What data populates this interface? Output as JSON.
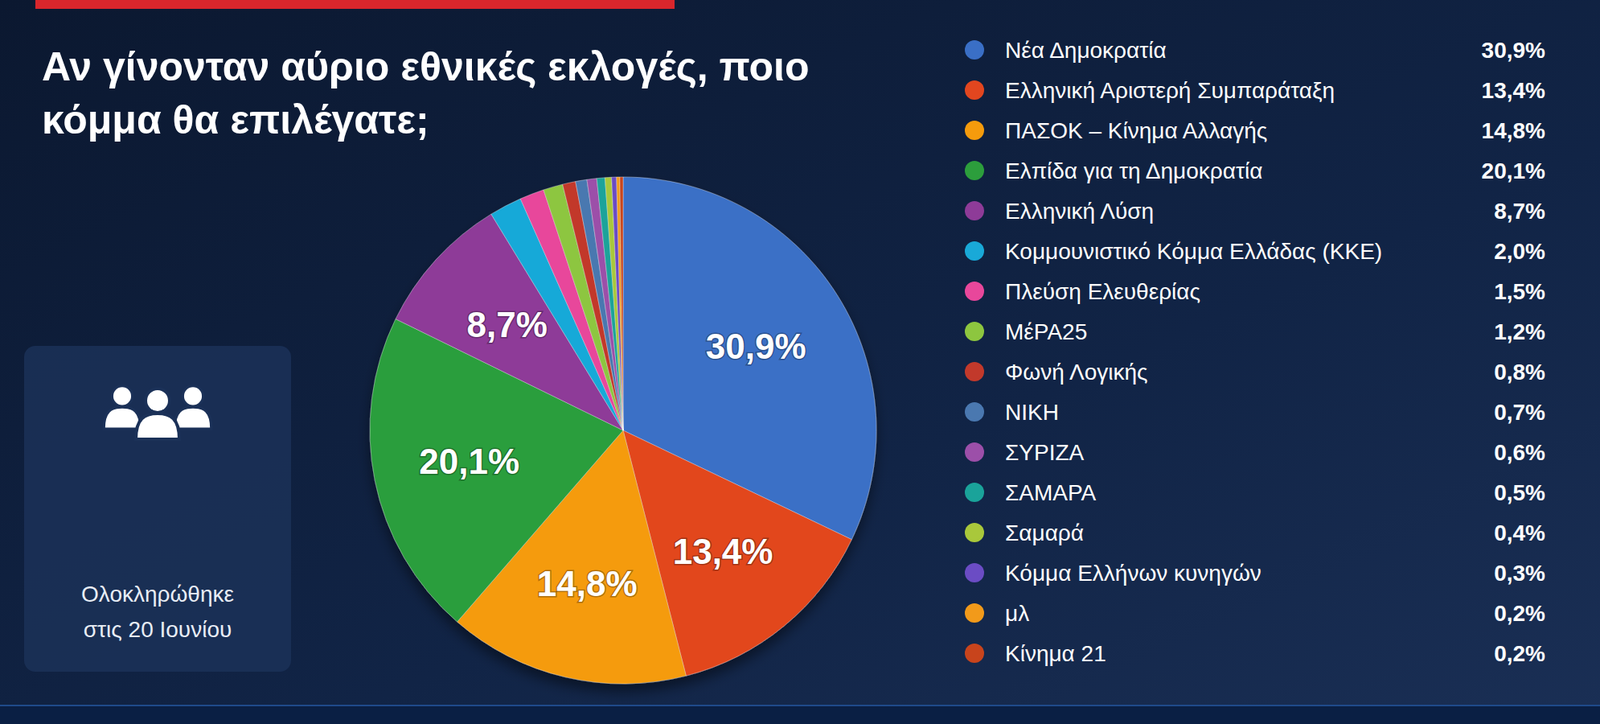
{
  "chart_data": {
    "type": "pie",
    "title": "Αν γίνονταν αύριο εθνικές εκλογές, ποιο κόμμα θα επιλέγατε;",
    "annotations": [
      "Ολοκληρώθηκε στις 20 Ιουνίου"
    ],
    "categories": [
      "Νέα Δημοκρατία",
      "Ελληνική Αριστερή Συμπαράταξη",
      "ΠΑΣΟΚ – Κίνημα Αλλαγής",
      "Ελπίδα για τη Δημοκρατία",
      "Ελληνική Λύση",
      "Κομμουνιστικό Κόμμα Ελλάδας (ΚΚΕ)",
      "Πλεύση Ελευθερίας",
      "ΜέΡΑ25",
      "Φωνή Λογικής",
      "ΝΙΚΗ",
      "ΣΥΡΙΖΑ",
      "ΣΑΜΑΡΑ",
      "Σαμαρά",
      "Κόμμα Ελλήνων κυνηγών",
      "μλ",
      "Κίνημα 21"
    ],
    "values": [
      30.9,
      13.4,
      14.8,
      20.1,
      8.7,
      2.0,
      1.5,
      1.2,
      0.8,
      0.7,
      0.6,
      0.5,
      0.4,
      0.3,
      0.2,
      0.2
    ],
    "value_labels": [
      "30,9%",
      "13,4%",
      "14,8%",
      "20,1%",
      "8,7%",
      "2,0%",
      "1,5%",
      "1,2%",
      "0,8%",
      "0,7%",
      "0,6%",
      "0,5%",
      "0,4%",
      "0,3%",
      "0,2%",
      "0,2%"
    ],
    "colors": [
      "#3a6fc6",
      "#e2461f",
      "#f59b0c",
      "#2c9e3c",
      "#8e3b98",
      "#19a9d8",
      "#e8479b",
      "#8dc63f",
      "#c2392b",
      "#4a78b0",
      "#9c4fa9",
      "#1aa39a",
      "#a9c83b",
      "#6b4cc4",
      "#f29a1a",
      "#c8441c"
    ],
    "data_labels": true,
    "legend": "right"
  }
}
